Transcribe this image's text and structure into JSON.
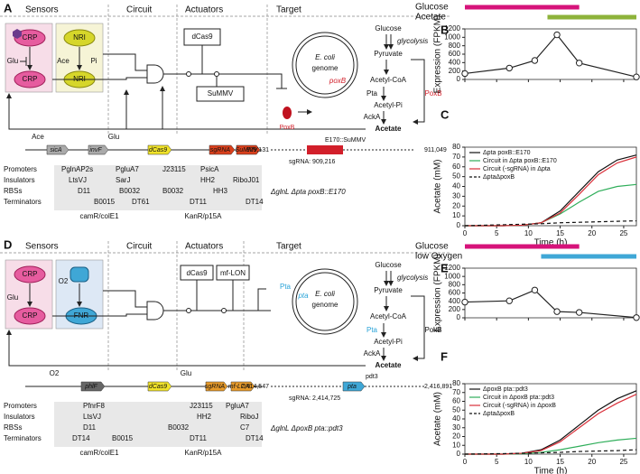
{
  "panel_a": {
    "label": "A",
    "headers": [
      "Sensors",
      "Circuit",
      "Actuators",
      "Target"
    ],
    "sensor_texts": [
      "CRP",
      "Glu",
      "CRP",
      "NRI",
      "Ace",
      "Pi",
      "NRI"
    ],
    "actuators": [
      "dCas9",
      "SuMMV"
    ],
    "target": [
      "E. coli",
      "genome",
      "poxB",
      "PoxB"
    ],
    "pathway": [
      "Glucose",
      "glycolysis",
      "Pyruvate",
      "Acetyl-CoA",
      "Pta",
      "PoxB",
      "Acetyl-Pi",
      "AckA",
      "Acetate"
    ],
    "construct": {
      "inducers": [
        "Ace",
        "Glu"
      ],
      "genes": [
        "sicA",
        "invF",
        "dCas9",
        "sgRNA",
        "SuMMV"
      ],
      "locus": "E170::SuMMV",
      "coords": [
        "909,131",
        "911,049"
      ],
      "sgrna": "sgRNA: 909,216",
      "strain": "ΔglnL Δpta poxB::E170"
    },
    "table": {
      "row_labels": [
        "Promoters",
        "Insulators",
        "RBSs",
        "Terminators"
      ],
      "rows": [
        [
          "PglnAP2s",
          "PgluA7",
          "J23115",
          "PsicA"
        ],
        [
          "LtsVJ",
          "SarJ",
          "HH2",
          "RiboJ01"
        ],
        [
          "D11",
          "B0032",
          "B0032",
          "HH3"
        ],
        [
          "B0015",
          "DT61",
          "DT11",
          "DT14"
        ]
      ],
      "backbones": [
        "camR/colE1",
        "KanR/p15A"
      ]
    }
  },
  "panel_d": {
    "label": "D",
    "headers": [
      "Sensors",
      "Circuit",
      "Actuators",
      "Target"
    ],
    "sensor_texts": [
      "CRP",
      "Glu",
      "CRP",
      "O2",
      "FNR"
    ],
    "actuators": [
      "dCas9",
      "mf-LON"
    ],
    "target": [
      "E. coli",
      "genome",
      "Pta",
      "pta"
    ],
    "pathway": [
      "Glucose",
      "glycolysis",
      "Pyruvate",
      "Acetyl-CoA",
      "Pta",
      "PoxB",
      "Acetyl-Pi",
      "AckA",
      "Acetate"
    ],
    "construct": {
      "inducers": [
        "O2",
        "Glu"
      ],
      "genes": [
        "phlF",
        "dCas9",
        "sgRNA",
        "mf-LON",
        "pta"
      ],
      "locus": "pdt3",
      "coords": [
        "2,414,547",
        "2,416,891"
      ],
      "sgrna": "sgRNA: 2,414,725",
      "strain": "ΔglnL ΔpoxB pta::pdt3"
    },
    "table": {
      "row_labels": [
        "Promoters",
        "Insulators",
        "RBSs",
        "Terminators"
      ],
      "rows": [
        [
          "PfnrF8",
          "J23115",
          "PgluA7"
        ],
        [
          "LtsVJ",
          "HH2",
          "RiboJ"
        ],
        [
          "D11",
          "B0032",
          "C7"
        ],
        [
          "DT14",
          "B0015",
          "DT11",
          "DT14"
        ]
      ],
      "backbones": [
        "camR/colE1",
        "KanR/p15A"
      ]
    }
  },
  "chart_data": [
    {
      "type": "line",
      "label": "B",
      "ylabel": "Expression (FPKM)",
      "x": [
        0,
        7,
        11,
        14.5,
        18,
        27
      ],
      "values": [
        140,
        270,
        450,
        1060,
        390,
        60
      ],
      "color": "#222222",
      "marker": "open-circle",
      "xlim": [
        0,
        27
      ],
      "ylim": [
        0,
        1200
      ],
      "xticks": [
        0,
        5,
        10,
        15,
        20,
        25
      ],
      "yticks": [
        0,
        200,
        400,
        600,
        800,
        1000,
        1200
      ],
      "conditions": [
        {
          "name": "Glucose",
          "color": "#d6137a",
          "start": 0,
          "end": 18
        },
        {
          "name": "Acetate",
          "color": "#8db33a",
          "start": 13,
          "end": 27
        }
      ]
    },
    {
      "type": "line",
      "label": "C",
      "xlabel": "Time (h)",
      "ylabel": "Acetate (mM)",
      "x": [
        0,
        3,
        6,
        9,
        12,
        15,
        18,
        21,
        24,
        27
      ],
      "series": [
        {
          "name": "Δpta poxB::E170",
          "color": "#111111",
          "values": [
            0,
            0,
            0,
            0.5,
            3,
            15,
            35,
            55,
            67,
            72
          ]
        },
        {
          "name": "Circuit in Δpta poxB::E170",
          "color": "#2fae5a",
          "values": [
            0,
            0,
            0,
            0.5,
            3,
            12,
            24,
            35,
            40,
            42
          ]
        },
        {
          "name": "Circuit (-sgRNA) in Δpta",
          "color": "#d9303a",
          "values": [
            0,
            0,
            0,
            0.5,
            3,
            13,
            32,
            52,
            64,
            70
          ]
        },
        {
          "name": "ΔptaΔpoxB",
          "color": "#111111",
          "dash": true,
          "values": [
            0,
            0.5,
            1,
            1.5,
            2,
            3,
            3.5,
            4,
            4.5,
            5
          ]
        }
      ],
      "xlim": [
        0,
        27
      ],
      "ylim": [
        0,
        80
      ],
      "xticks": [
        0,
        5,
        10,
        15,
        20,
        25
      ],
      "yticks": [
        0,
        10,
        20,
        30,
        40,
        50,
        60,
        70,
        80
      ]
    },
    {
      "type": "line",
      "label": "E",
      "ylabel": "Expression (FPKM)",
      "x": [
        0,
        7,
        11,
        14.5,
        18,
        27
      ],
      "values": [
        380,
        410,
        670,
        150,
        130,
        5
      ],
      "color": "#222222",
      "marker": "open-circle",
      "xlim": [
        0,
        27
      ],
      "ylim": [
        0,
        1200
      ],
      "xticks": [
        0,
        5,
        10,
        15,
        20,
        25
      ],
      "yticks": [
        0,
        200,
        400,
        600,
        800,
        1000,
        1200
      ],
      "conditions": [
        {
          "name": "Glucose",
          "color": "#d6137a",
          "start": 0,
          "end": 18
        },
        {
          "name": "low Oxygen",
          "color": "#3fa7d6",
          "start": 12,
          "end": 27
        }
      ]
    },
    {
      "type": "line",
      "label": "F",
      "xlabel": "Time (h)",
      "ylabel": "Acetate (mM)",
      "x": [
        0,
        3,
        6,
        9,
        12,
        15,
        18,
        21,
        24,
        27
      ],
      "series": [
        {
          "name": "ΔpoxB pta::pdt3",
          "color": "#111111",
          "values": [
            0,
            0,
            0,
            1,
            5,
            16,
            33,
            50,
            63,
            72
          ]
        },
        {
          "name": "Circuit in ΔpoxB pta::pdt3",
          "color": "#2fae5a",
          "values": [
            0,
            0,
            0,
            0.5,
            2,
            5,
            9,
            13,
            16,
            18
          ]
        },
        {
          "name": "Circuit (-sgRNA) in ΔpoxB",
          "color": "#d9303a",
          "values": [
            0,
            0,
            0,
            1,
            4,
            14,
            30,
            46,
            58,
            68
          ]
        },
        {
          "name": "ΔptaΔpoxB",
          "color": "#111111",
          "dash": true,
          "values": [
            0,
            0.3,
            0.6,
            1,
            1.5,
            2,
            3,
            3.5,
            4,
            5
          ]
        }
      ],
      "xlim": [
        0,
        27
      ],
      "ylim": [
        0,
        80
      ],
      "xticks": [
        0,
        5,
        10,
        15,
        20,
        25
      ],
      "yticks": [
        0,
        10,
        20,
        30,
        40,
        50,
        60,
        70,
        80
      ]
    }
  ]
}
